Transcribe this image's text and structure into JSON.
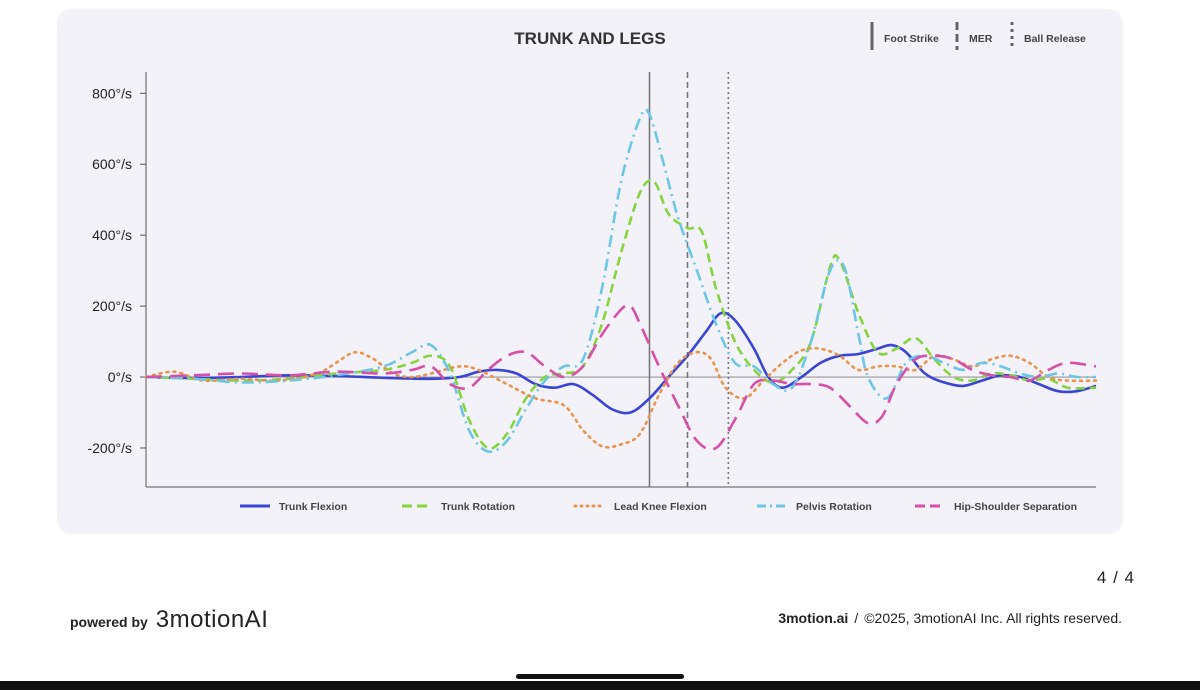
{
  "chart_data": {
    "type": "line",
    "title": "TRUNK AND LEGS",
    "xlabel": "",
    "ylabel": "",
    "x_range": [
      0,
      100
    ],
    "ylim": [
      -310,
      860
    ],
    "y_ticks": [
      800,
      600,
      400,
      200,
      0,
      -200
    ],
    "y_tick_labels": [
      "800°/s",
      "600°/s",
      "400°/s",
      "200°/s",
      "0°/s",
      "-200°/s"
    ],
    "events": [
      {
        "name": "Foot Strike",
        "x": 53,
        "style": "solid"
      },
      {
        "name": "MER",
        "x": 57,
        "style": "dashed"
      },
      {
        "name": "Ball Release",
        "x": 61.3,
        "style": "dotted"
      }
    ],
    "series": [
      {
        "name": "Trunk Flexion",
        "color": "#3a45d6",
        "style": "solid",
        "points": [
          [
            0,
            0
          ],
          [
            5,
            -3
          ],
          [
            10,
            0
          ],
          [
            15,
            5
          ],
          [
            20,
            3
          ],
          [
            25,
            -2
          ],
          [
            30,
            -5
          ],
          [
            33,
            0
          ],
          [
            35,
            15
          ],
          [
            37,
            20
          ],
          [
            39,
            10
          ],
          [
            41,
            -20
          ],
          [
            43,
            -30
          ],
          [
            45,
            -20
          ],
          [
            47,
            -50
          ],
          [
            49,
            -90
          ],
          [
            51,
            -100
          ],
          [
            53,
            -60
          ],
          [
            55,
            0
          ],
          [
            57,
            60
          ],
          [
            59,
            130
          ],
          [
            60.5,
            180
          ],
          [
            62,
            160
          ],
          [
            64,
            80
          ],
          [
            65.5,
            0
          ],
          [
            67,
            -30
          ],
          [
            69,
            0
          ],
          [
            71,
            40
          ],
          [
            73,
            60
          ],
          [
            75,
            65
          ],
          [
            77,
            80
          ],
          [
            78.5,
            90
          ],
          [
            80,
            70
          ],
          [
            82,
            10
          ],
          [
            84,
            -15
          ],
          [
            86,
            -25
          ],
          [
            88,
            -10
          ],
          [
            90,
            5
          ],
          [
            92,
            0
          ],
          [
            94,
            -20
          ],
          [
            96,
            -40
          ],
          [
            98,
            -40
          ],
          [
            100,
            -25
          ]
        ]
      },
      {
        "name": "Trunk Rotation",
        "color": "#86d43c",
        "style": "dashed",
        "points": [
          [
            0,
            0
          ],
          [
            5,
            -5
          ],
          [
            10,
            -10
          ],
          [
            15,
            -5
          ],
          [
            20,
            10
          ],
          [
            25,
            20
          ],
          [
            28,
            40
          ],
          [
            30,
            60
          ],
          [
            32,
            30
          ],
          [
            34,
            -120
          ],
          [
            36,
            -200
          ],
          [
            38,
            -160
          ],
          [
            40,
            -60
          ],
          [
            42,
            0
          ],
          [
            44,
            10
          ],
          [
            46,
            30
          ],
          [
            48,
            150
          ],
          [
            50,
            350
          ],
          [
            52,
            520
          ],
          [
            53.5,
            550
          ],
          [
            55,
            460
          ],
          [
            57,
            420
          ],
          [
            58.5,
            410
          ],
          [
            60,
            250
          ],
          [
            62,
            100
          ],
          [
            64,
            20
          ],
          [
            66,
            -15
          ],
          [
            68,
            20
          ],
          [
            70,
            100
          ],
          [
            72,
            310
          ],
          [
            73,
            330
          ],
          [
            75,
            180
          ],
          [
            77,
            70
          ],
          [
            79,
            80
          ],
          [
            81,
            110
          ],
          [
            83,
            50
          ],
          [
            85,
            0
          ],
          [
            87,
            -10
          ],
          [
            89,
            10
          ],
          [
            91,
            5
          ],
          [
            93,
            -10
          ],
          [
            95,
            -5
          ],
          [
            97,
            -30
          ],
          [
            100,
            -30
          ]
        ]
      },
      {
        "name": "Lead Knee Flexion",
        "color": "#e8944a",
        "style": "dotted",
        "points": [
          [
            0,
            0
          ],
          [
            3,
            15
          ],
          [
            6,
            -10
          ],
          [
            10,
            -5
          ],
          [
            14,
            -10
          ],
          [
            18,
            10
          ],
          [
            20,
            40
          ],
          [
            22,
            70
          ],
          [
            24,
            50
          ],
          [
            26,
            10
          ],
          [
            28,
            0
          ],
          [
            30,
            10
          ],
          [
            33,
            30
          ],
          [
            35,
            20
          ],
          [
            38,
            -20
          ],
          [
            41,
            -60
          ],
          [
            44,
            -80
          ],
          [
            46,
            -150
          ],
          [
            48,
            -195
          ],
          [
            50,
            -190
          ],
          [
            52,
            -160
          ],
          [
            54,
            -50
          ],
          [
            56,
            40
          ],
          [
            58,
            70
          ],
          [
            59.5,
            50
          ],
          [
            61,
            -30
          ],
          [
            63,
            -60
          ],
          [
            65,
            -10
          ],
          [
            67,
            40
          ],
          [
            69,
            75
          ],
          [
            71,
            80
          ],
          [
            73,
            60
          ],
          [
            75,
            20
          ],
          [
            77,
            30
          ],
          [
            79,
            30
          ],
          [
            81,
            20
          ],
          [
            83,
            60
          ],
          [
            85,
            50
          ],
          [
            87,
            30
          ],
          [
            89,
            50
          ],
          [
            91,
            60
          ],
          [
            93,
            40
          ],
          [
            95,
            0
          ],
          [
            97,
            -10
          ],
          [
            100,
            -10
          ]
        ]
      },
      {
        "name": "Pelvis Rotation",
        "color": "#6cc6e6",
        "style": "dashdot",
        "points": [
          [
            0,
            0
          ],
          [
            5,
            -5
          ],
          [
            10,
            -15
          ],
          [
            15,
            -10
          ],
          [
            20,
            5
          ],
          [
            25,
            30
          ],
          [
            28,
            70
          ],
          [
            30,
            90
          ],
          [
            32,
            10
          ],
          [
            34,
            -150
          ],
          [
            36,
            -210
          ],
          [
            38,
            -180
          ],
          [
            40,
            -90
          ],
          [
            42,
            -10
          ],
          [
            44,
            30
          ],
          [
            46,
            50
          ],
          [
            48,
            250
          ],
          [
            50,
            550
          ],
          [
            52,
            730
          ],
          [
            53,
            740
          ],
          [
            54.5,
            600
          ],
          [
            56,
            450
          ],
          [
            58,
            300
          ],
          [
            60,
            150
          ],
          [
            62,
            40
          ],
          [
            64,
            30
          ],
          [
            66,
            -20
          ],
          [
            68,
            -30
          ],
          [
            70,
            100
          ],
          [
            72,
            300
          ],
          [
            73.5,
            310
          ],
          [
            75,
            120
          ],
          [
            76,
            0
          ],
          [
            78,
            -60
          ],
          [
            80,
            40
          ],
          [
            82,
            60
          ],
          [
            84,
            40
          ],
          [
            86,
            20
          ],
          [
            88,
            40
          ],
          [
            90,
            30
          ],
          [
            92,
            10
          ],
          [
            94,
            0
          ],
          [
            96,
            10
          ],
          [
            98,
            0
          ],
          [
            100,
            0
          ]
        ]
      },
      {
        "name": "Hip-Shoulder Separation",
        "color": "#d64fa8",
        "style": "longdash",
        "points": [
          [
            0,
            0
          ],
          [
            5,
            5
          ],
          [
            10,
            10
          ],
          [
            15,
            5
          ],
          [
            20,
            15
          ],
          [
            25,
            10
          ],
          [
            28,
            20
          ],
          [
            30,
            30
          ],
          [
            32,
            -20
          ],
          [
            34,
            -30
          ],
          [
            36,
            20
          ],
          [
            38,
            60
          ],
          [
            40,
            70
          ],
          [
            42,
            30
          ],
          [
            44,
            0
          ],
          [
            46,
            30
          ],
          [
            48,
            120
          ],
          [
            50,
            190
          ],
          [
            51,
            200
          ],
          [
            52,
            150
          ],
          [
            54,
            30
          ],
          [
            56,
            -80
          ],
          [
            58,
            -180
          ],
          [
            60,
            -200
          ],
          [
            62,
            -120
          ],
          [
            64,
            -20
          ],
          [
            66,
            -10
          ],
          [
            68,
            -20
          ],
          [
            70,
            -20
          ],
          [
            72,
            -30
          ],
          [
            74,
            -80
          ],
          [
            76,
            -130
          ],
          [
            77.5,
            -110
          ],
          [
            79,
            -20
          ],
          [
            81,
            50
          ],
          [
            83,
            60
          ],
          [
            85,
            50
          ],
          [
            87,
            20
          ],
          [
            89,
            5
          ],
          [
            91,
            0
          ],
          [
            93,
            -10
          ],
          [
            95,
            20
          ],
          [
            97,
            40
          ],
          [
            100,
            30
          ]
        ]
      }
    ]
  },
  "page": {
    "page_number": "4 / 4",
    "powered_by": "powered by",
    "brand": "3motionAI",
    "site": "3motion.ai",
    "separator": "/",
    "copyright": "©2025, 3motionAI Inc. All rights reserved."
  }
}
